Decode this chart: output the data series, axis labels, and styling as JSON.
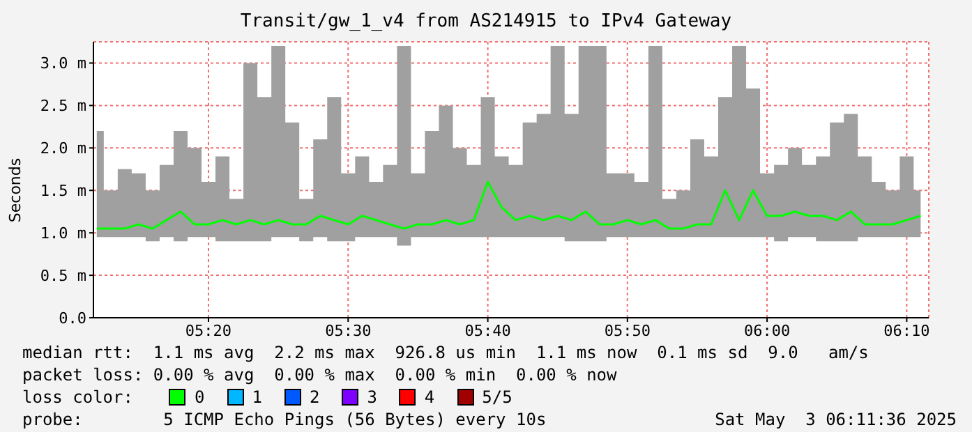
{
  "chart_data": {
    "type": "line",
    "title": "Transit/gw_1_v4 from AS214915 to IPv4 Gateway",
    "ylabel": "Seconds",
    "x": [
      5.2,
      5.2167,
      5.2333,
      5.25,
      5.2667,
      5.2833,
      5.3,
      5.3167,
      5.3333,
      5.35,
      5.3667,
      5.3833,
      5.4,
      5.4167,
      5.4333,
      5.45,
      5.4667,
      5.4833,
      5.5,
      5.5167,
      5.5333,
      5.55,
      5.5667,
      5.5833,
      5.6,
      5.6167,
      5.6333,
      5.65,
      5.6667,
      5.6833,
      5.7,
      5.7167,
      5.7333,
      5.75,
      5.7667,
      5.7833,
      5.8,
      5.8167,
      5.8333,
      5.85,
      5.8667,
      5.8833,
      5.9,
      5.9167,
      5.9333,
      5.95,
      5.9667,
      5.9833,
      6.0,
      6.0167,
      6.0333,
      6.05,
      6.0667,
      6.0833,
      6.1,
      6.1167,
      6.1333,
      6.15,
      6.1667,
      6.1833
    ],
    "series": [
      {
        "name": "0",
        "color": "#00ff00",
        "values": [
          1.05,
          1.05,
          1.05,
          1.1,
          1.05,
          1.15,
          1.25,
          1.1,
          1.1,
          1.15,
          1.1,
          1.15,
          1.1,
          1.15,
          1.1,
          1.1,
          1.2,
          1.15,
          1.1,
          1.2,
          1.15,
          1.1,
          1.05,
          1.1,
          1.1,
          1.15,
          1.1,
          1.15,
          1.6,
          1.3,
          1.15,
          1.2,
          1.15,
          1.2,
          1.15,
          1.25,
          1.1,
          1.1,
          1.15,
          1.1,
          1.15,
          1.05,
          1.05,
          1.1,
          1.1,
          1.5,
          1.15,
          1.5,
          1.2,
          1.2,
          1.25,
          1.2,
          1.2,
          1.15,
          1.25,
          1.1,
          1.1,
          1.1,
          1.15,
          1.2
        ],
        "lower": [
          0.95,
          0.95,
          0.95,
          0.95,
          0.9,
          0.95,
          0.9,
          0.95,
          0.95,
          0.9,
          0.9,
          0.9,
          0.9,
          0.95,
          0.95,
          0.9,
          0.95,
          0.9,
          0.9,
          0.95,
          0.95,
          0.95,
          0.85,
          0.95,
          0.95,
          0.95,
          0.95,
          0.95,
          0.95,
          0.95,
          0.95,
          0.95,
          0.95,
          0.95,
          0.9,
          0.9,
          0.9,
          0.95,
          0.95,
          0.95,
          0.95,
          0.95,
          0.95,
          0.95,
          0.95,
          0.95,
          0.95,
          0.95,
          0.95,
          0.9,
          0.95,
          0.95,
          0.9,
          0.9,
          0.9,
          0.95,
          0.95,
          0.95,
          0.95,
          0.95
        ],
        "upper": [
          2.2,
          1.5,
          1.75,
          1.7,
          1.5,
          1.8,
          2.2,
          2.0,
          1.6,
          1.9,
          1.4,
          3.0,
          2.6,
          3.2,
          2.3,
          1.4,
          2.1,
          2.6,
          1.7,
          1.9,
          1.6,
          1.8,
          3.2,
          1.7,
          2.2,
          2.5,
          2.0,
          1.8,
          2.6,
          1.9,
          1.8,
          2.3,
          2.4,
          3.2,
          2.4,
          3.2,
          3.2,
          1.7,
          1.7,
          1.6,
          3.2,
          1.4,
          1.5,
          2.1,
          1.9,
          2.6,
          3.2,
          2.7,
          1.7,
          1.8,
          2.0,
          1.8,
          1.9,
          2.3,
          2.4,
          1.9,
          1.6,
          1.5,
          1.9,
          1.5
        ]
      },
      {
        "name": "1",
        "color": "#00b8ff",
        "values": [
          null,
          null,
          null,
          null,
          null,
          null,
          null,
          null,
          null,
          null,
          null,
          null,
          null,
          null,
          null,
          null,
          null,
          null,
          null,
          null,
          null,
          null,
          null,
          null,
          null,
          null,
          null,
          null,
          null,
          null,
          null,
          null,
          null,
          null,
          null,
          null,
          null,
          null,
          null,
          null,
          null,
          null,
          null,
          null,
          null,
          null,
          null,
          null,
          null,
          null,
          null,
          null,
          null,
          null,
          null,
          null,
          null,
          null,
          null,
          null
        ]
      },
      {
        "name": "2",
        "color": "#0059ff",
        "values": [
          null,
          null,
          null,
          null,
          null,
          null,
          null,
          null,
          null,
          null,
          null,
          null,
          null,
          null,
          null,
          null,
          null,
          null,
          null,
          null,
          null,
          null,
          null,
          null,
          null,
          null,
          null,
          null,
          null,
          null,
          null,
          null,
          null,
          null,
          null,
          null,
          null,
          null,
          null,
          null,
          null,
          null,
          null,
          null,
          null,
          null,
          null,
          null,
          null,
          null,
          null,
          null,
          null,
          null,
          null,
          null,
          null,
          null,
          null,
          null
        ]
      },
      {
        "name": "3",
        "color": "#7e00ff",
        "values": [
          null,
          null,
          null,
          null,
          null,
          null,
          null,
          null,
          null,
          null,
          null,
          null,
          null,
          null,
          null,
          null,
          null,
          null,
          null,
          null,
          null,
          null,
          null,
          null,
          null,
          null,
          null,
          null,
          null,
          null,
          null,
          null,
          null,
          null,
          null,
          null,
          null,
          null,
          null,
          null,
          null,
          null,
          null,
          null,
          null,
          null,
          null,
          null,
          null,
          null,
          null,
          null,
          null,
          null,
          null,
          null,
          null,
          null,
          null,
          null
        ]
      },
      {
        "name": "4",
        "color": "#ff0000",
        "values": [
          null,
          null,
          null,
          null,
          null,
          null,
          null,
          null,
          null,
          null,
          null,
          null,
          null,
          null,
          null,
          null,
          null,
          null,
          null,
          null,
          null,
          null,
          null,
          null,
          null,
          null,
          null,
          null,
          null,
          null,
          null,
          null,
          null,
          null,
          null,
          null,
          null,
          null,
          null,
          null,
          null,
          null,
          null,
          null,
          null,
          null,
          null,
          null,
          null,
          null,
          null,
          null,
          null,
          null,
          null,
          null,
          null,
          null,
          null,
          null
        ]
      },
      {
        "name": "5/5",
        "color": "#a10000",
        "values": [
          null,
          null,
          null,
          null,
          null,
          null,
          null,
          null,
          null,
          null,
          null,
          null,
          null,
          null,
          null,
          null,
          null,
          null,
          null,
          null,
          null,
          null,
          null,
          null,
          null,
          null,
          null,
          null,
          null,
          null,
          null,
          null,
          null,
          null,
          null,
          null,
          null,
          null,
          null,
          null,
          null,
          null,
          null,
          null,
          null,
          null,
          null,
          null,
          null,
          null,
          null,
          null,
          null,
          null,
          null,
          null,
          null,
          null,
          null,
          null
        ]
      }
    ],
    "xlim": [
      5.196,
      6.193
    ],
    "xticks": [
      {
        "value": 5.3333,
        "label": "05:20"
      },
      {
        "value": 5.5,
        "label": "05:30"
      },
      {
        "value": 5.6667,
        "label": "05:40"
      },
      {
        "value": 5.8333,
        "label": "05:50"
      },
      {
        "value": 6.0,
        "label": "06:00"
      },
      {
        "value": 6.1667,
        "label": "06:10"
      }
    ],
    "ylim": [
      0,
      3.25
    ],
    "yticks": [
      {
        "value": 0,
        "label": "0.0"
      },
      {
        "value": 0.5,
        "label": "0.5 m"
      },
      {
        "value": 1,
        "label": "1.0 m"
      },
      {
        "value": 1.5,
        "label": "1.5 m"
      },
      {
        "value": 2,
        "label": "2.0 m"
      },
      {
        "value": 2.5,
        "label": "2.5 m"
      },
      {
        "value": 3,
        "label": "3.0 m"
      }
    ],
    "grid": true,
    "legend": "bottom",
    "marker": "none",
    "line_style": "solid",
    "annotations": [
      "median rtt:  1.1 ms avg  2.2 ms max  926.8 us min  1.1 ms now  0.1 ms sd  9.0   am/s",
      "packet loss: 0.00 % avg  0.00 % max  0.00 % min  0.00 % now",
      "loss color:",
      "probe:        5 ICMP Echo Pings (56 Bytes) every 10s",
      "Sat May  3 06:11:36 2025"
    ]
  }
}
